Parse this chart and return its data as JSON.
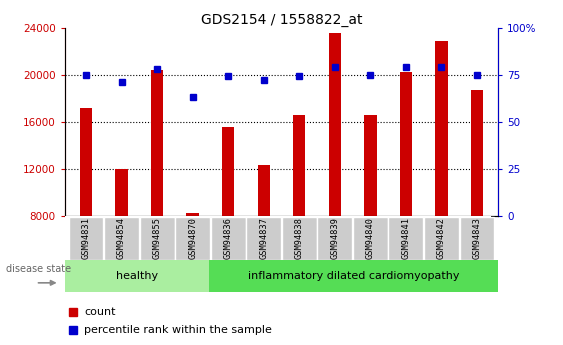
{
  "title": "GDS2154 / 1558822_at",
  "samples": [
    "GSM94831",
    "GSM94854",
    "GSM94855",
    "GSM94870",
    "GSM94836",
    "GSM94837",
    "GSM94838",
    "GSM94839",
    "GSM94840",
    "GSM94841",
    "GSM94842",
    "GSM94843"
  ],
  "counts": [
    17200,
    12000,
    20400,
    8200,
    15500,
    12300,
    16600,
    23500,
    16600,
    20200,
    22900,
    18700
  ],
  "percentiles": [
    75,
    71,
    78,
    63,
    74,
    72,
    74,
    79,
    75,
    79,
    79,
    75
  ],
  "healthy_count": 4,
  "ylim_left": [
    8000,
    24000
  ],
  "ylim_right": [
    0,
    100
  ],
  "yticks_left": [
    8000,
    12000,
    16000,
    20000,
    24000
  ],
  "yticks_right": [
    0,
    25,
    50,
    75,
    100
  ],
  "bar_color": "#cc0000",
  "dot_color": "#0000cc",
  "bar_width": 0.35,
  "healthy_bg": "#aaeea0",
  "disease_bg": "#55dd55",
  "xlabel_bg": "#cccccc",
  "grid_color": "#000000",
  "ylabel_left_color": "#cc0000",
  "ylabel_right_color": "#0000cc",
  "healthy_label": "healthy",
  "disease_label": "inflammatory dilated cardiomyopathy",
  "disease_state_label": "disease state",
  "legend_count_label": "count",
  "legend_pct_label": "percentile rank within the sample",
  "title_fontsize": 10,
  "tick_fontsize": 7.5,
  "label_fontsize": 8
}
